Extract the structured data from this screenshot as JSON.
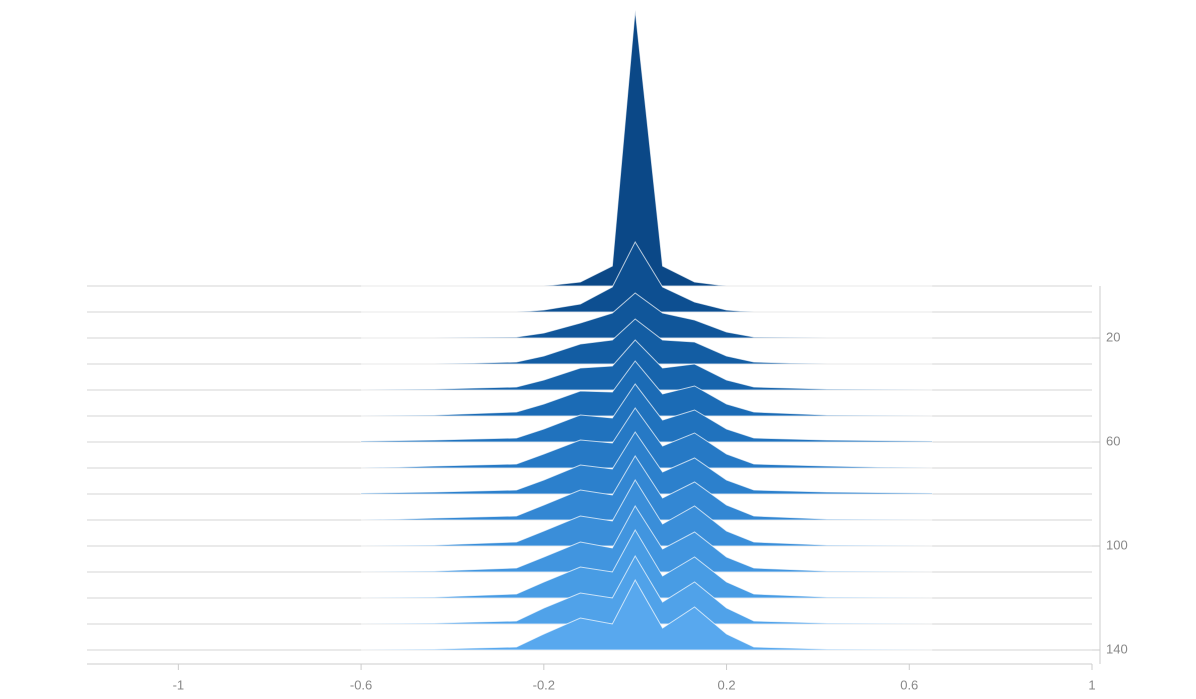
{
  "chart_data": {
    "type": "ridgeline",
    "x": [
      -0.6,
      -0.44,
      -0.26,
      -0.2,
      -0.12,
      -0.05,
      0,
      0.06,
      0.13,
      0.2,
      0.26,
      0.42,
      0.65
    ],
    "xlim": [
      -1.2,
      1.0
    ],
    "xticks": [
      -1.0,
      -0.6,
      -0.2,
      0.2,
      0.6,
      1.0
    ],
    "ylim": [
      0,
      145
    ],
    "yticks": [
      20,
      60,
      100,
      140
    ],
    "series": [
      {
        "step": 0,
        "color": "#0b4887",
        "values": [
          0,
          0,
          0,
          0,
          4,
          20,
          276,
          20,
          4,
          0,
          0,
          0,
          0
        ]
      },
      {
        "step": 10,
        "color": "#0d4f91",
        "values": [
          0,
          0,
          0,
          2,
          8,
          25,
          70,
          25,
          10,
          2,
          0,
          0,
          0
        ]
      },
      {
        "step": 20,
        "color": "#10569a",
        "values": [
          0,
          0,
          1,
          5,
          15,
          25,
          45,
          25,
          18,
          6,
          1,
          0,
          0
        ]
      },
      {
        "step": 30,
        "color": "#135da3",
        "values": [
          0,
          0,
          2,
          8,
          20,
          24,
          45,
          24,
          22,
          8,
          2,
          0,
          0
        ]
      },
      {
        "step": 40,
        "color": "#1764ac",
        "values": [
          0,
          1,
          3,
          10,
          22,
          24,
          50,
          22,
          26,
          10,
          3,
          1,
          0
        ]
      },
      {
        "step": 50,
        "color": "#1b6bb5",
        "values": [
          0,
          1,
          4,
          12,
          25,
          24,
          55,
          22,
          30,
          12,
          4,
          1,
          0
        ]
      },
      {
        "step": 60,
        "color": "#2072bd",
        "values": [
          1,
          2,
          4,
          13,
          27,
          24,
          58,
          22,
          32,
          13,
          4,
          2,
          1
        ]
      },
      {
        "step": 70,
        "color": "#2679c5",
        "values": [
          0,
          2,
          4,
          14,
          28,
          25,
          60,
          22,
          35,
          14,
          4,
          2,
          0
        ]
      },
      {
        "step": 80,
        "color": "#2c80cc",
        "values": [
          1,
          2,
          4,
          14,
          29,
          25,
          62,
          22,
          36,
          14,
          4,
          2,
          1
        ]
      },
      {
        "step": 90,
        "color": "#3387d3",
        "values": [
          0,
          2,
          4,
          15,
          30,
          25,
          64,
          22,
          38,
          15,
          4,
          1,
          0
        ]
      },
      {
        "step": 100,
        "color": "#3a8ed9",
        "values": [
          0,
          1,
          4,
          15,
          30,
          25,
          66,
          22,
          40,
          15,
          4,
          1,
          0
        ]
      },
      {
        "step": 110,
        "color": "#4195df",
        "values": [
          0,
          1,
          4,
          15,
          30,
          24,
          66,
          23,
          40,
          15,
          4,
          1,
          0
        ]
      },
      {
        "step": 120,
        "color": "#489ce4",
        "values": [
          0,
          1,
          4,
          16,
          31,
          26,
          68,
          22,
          41,
          16,
          4,
          1,
          0
        ]
      },
      {
        "step": 130,
        "color": "#50a2e9",
        "values": [
          0,
          1,
          3,
          16,
          31,
          26,
          68,
          22,
          42,
          16,
          3,
          1,
          0
        ]
      },
      {
        "step": 140,
        "color": "#58a8ee",
        "values": [
          0,
          1,
          3,
          16,
          32,
          26,
          70,
          22,
          43,
          16,
          3,
          1,
          0
        ]
      }
    ]
  }
}
